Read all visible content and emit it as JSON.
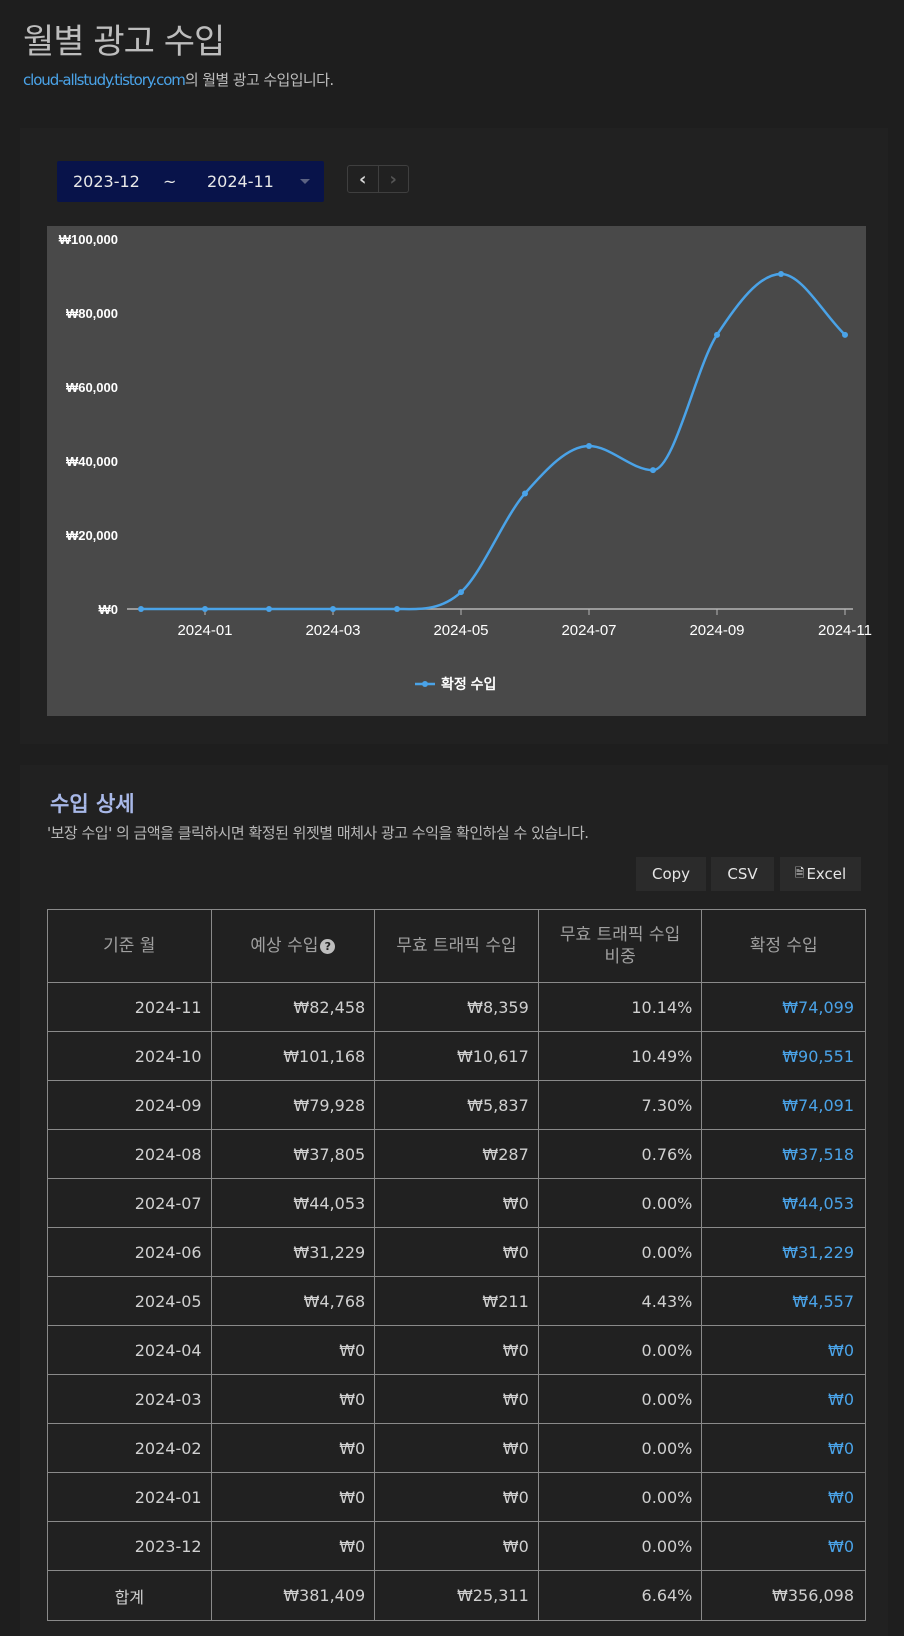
{
  "page": {
    "title": "월별 광고 수입",
    "site_link": "cloud-allstudy.tistory.com",
    "subtitle_suffix": "의 월별 광고 수입입니다."
  },
  "filter": {
    "start": "2023-12",
    "separator": "~",
    "end": "2024-11",
    "prev_icon": "chevron-left-icon",
    "next_icon": "chevron-right-icon"
  },
  "chart_data": {
    "type": "line",
    "title": "",
    "xlabel": "",
    "ylabel": "",
    "x": [
      "2023-12",
      "2024-01",
      "2024-02",
      "2024-03",
      "2024-04",
      "2024-05",
      "2024-06",
      "2024-07",
      "2024-08",
      "2024-09",
      "2024-10",
      "2024-11"
    ],
    "x_tick_labels": [
      "2024-01",
      "2024-03",
      "2024-05",
      "2024-07",
      "2024-09",
      "2024-11"
    ],
    "y_tick_labels": [
      "₩0",
      "₩20,000",
      "₩40,000",
      "₩60,000",
      "₩80,000",
      "₩100,000"
    ],
    "ylim": [
      0,
      100000
    ],
    "grid": false,
    "legend": "bottom-center",
    "series": [
      {
        "name": "확정 수입",
        "color": "#4aa3e8",
        "values": [
          0,
          0,
          0,
          0,
          0,
          4557,
          31229,
          44053,
          37518,
          74091,
          90551,
          74099
        ]
      }
    ]
  },
  "details": {
    "title": "수입 상세",
    "description": "'보장 수입' 의 금액을 클릭하시면 확정된 위젯별 매체사 광고 수익을 확인하실 수 있습니다.",
    "export": {
      "copy": "Copy",
      "csv": "CSV",
      "excel": "Excel"
    },
    "headers": {
      "month": "기준 월",
      "expected": "예상 수입",
      "invalid": "무효 트래픽 수입",
      "ratio_line1": "무효 트래픽 수입",
      "ratio_line2": "비중",
      "confirmed": "확정 수입"
    },
    "rows": [
      {
        "month": "2024-11",
        "expected": "₩82,458",
        "invalid": "₩8,359",
        "ratio": "10.14%",
        "confirmed": "₩74,099"
      },
      {
        "month": "2024-10",
        "expected": "₩101,168",
        "invalid": "₩10,617",
        "ratio": "10.49%",
        "confirmed": "₩90,551"
      },
      {
        "month": "2024-09",
        "expected": "₩79,928",
        "invalid": "₩5,837",
        "ratio": "7.30%",
        "confirmed": "₩74,091"
      },
      {
        "month": "2024-08",
        "expected": "₩37,805",
        "invalid": "₩287",
        "ratio": "0.76%",
        "confirmed": "₩37,518"
      },
      {
        "month": "2024-07",
        "expected": "₩44,053",
        "invalid": "₩0",
        "ratio": "0.00%",
        "confirmed": "₩44,053"
      },
      {
        "month": "2024-06",
        "expected": "₩31,229",
        "invalid": "₩0",
        "ratio": "0.00%",
        "confirmed": "₩31,229"
      },
      {
        "month": "2024-05",
        "expected": "₩4,768",
        "invalid": "₩211",
        "ratio": "4.43%",
        "confirmed": "₩4,557"
      },
      {
        "month": "2024-04",
        "expected": "₩0",
        "invalid": "₩0",
        "ratio": "0.00%",
        "confirmed": "₩0"
      },
      {
        "month": "2024-03",
        "expected": "₩0",
        "invalid": "₩0",
        "ratio": "0.00%",
        "confirmed": "₩0"
      },
      {
        "month": "2024-02",
        "expected": "₩0",
        "invalid": "₩0",
        "ratio": "0.00%",
        "confirmed": "₩0"
      },
      {
        "month": "2024-01",
        "expected": "₩0",
        "invalid": "₩0",
        "ratio": "0.00%",
        "confirmed": "₩0"
      },
      {
        "month": "2023-12",
        "expected": "₩0",
        "invalid": "₩0",
        "ratio": "0.00%",
        "confirmed": "₩0"
      }
    ],
    "total": {
      "label": "합계",
      "expected": "₩381,409",
      "invalid": "₩25,311",
      "ratio": "6.64%",
      "confirmed": "₩356,098"
    }
  }
}
